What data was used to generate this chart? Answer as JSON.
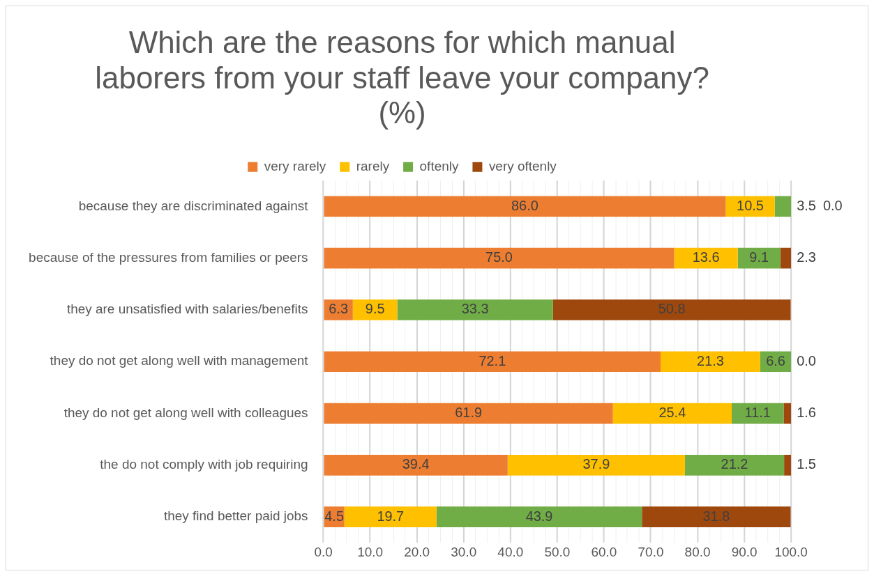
{
  "chart_data": {
    "type": "bar",
    "orientation": "horizontal",
    "stacked": true,
    "title": "Which are the reasons for which manual laborers from your staff leave your company? (%)",
    "categories": [
      "because they are discriminated against",
      "because of the pressures from families or peers",
      "they are unsatisfied with salaries/benefits",
      "they do not get along well with management",
      "they do not get along well with colleagues",
      "the do not comply with job requiring",
      "they find better paid jobs"
    ],
    "series": [
      {
        "name": "very rarely",
        "color": "#ed7d31",
        "values": [
          86.0,
          75.0,
          6.3,
          72.1,
          61.9,
          39.4,
          4.5
        ],
        "value_labels": [
          "86.0",
          "75.0",
          "6.3",
          "72.1",
          "61.9",
          "39.4",
          "4.5"
        ]
      },
      {
        "name": "rarely",
        "color": "#ffc000",
        "values": [
          10.5,
          13.6,
          9.5,
          21.3,
          25.4,
          37.9,
          19.7
        ],
        "value_labels": [
          "10.5",
          "13.6",
          "9.5",
          "21.3",
          "25.4",
          "37.9",
          "19.7"
        ]
      },
      {
        "name": "oftenly",
        "color": "#70ad47",
        "values": [
          3.5,
          9.1,
          33.3,
          6.6,
          11.1,
          21.2,
          43.9
        ],
        "value_labels": [
          "3.5",
          "9.1",
          "33.3",
          "6.6",
          "11.1",
          "21.2",
          "43.9"
        ]
      },
      {
        "name": "very oftenly",
        "color": "#9e480e",
        "values": [
          0.0,
          2.3,
          50.8,
          0.0,
          1.6,
          1.5,
          31.8
        ],
        "value_labels": [
          "0.0",
          "2.3",
          "50.8",
          "0.0",
          "1.6",
          "1.5",
          "31.8"
        ]
      }
    ],
    "xlim": [
      0,
      100
    ],
    "xticks": [
      {
        "value": 0,
        "label": "0.0"
      },
      {
        "value": 2.5,
        "label": null
      },
      {
        "value": 5,
        "label": null
      },
      {
        "value": 7.5,
        "label": null
      },
      {
        "value": 10,
        "label": "10.0"
      },
      {
        "value": 12.5,
        "label": null
      },
      {
        "value": 15,
        "label": null
      },
      {
        "value": 17.5,
        "label": null
      },
      {
        "value": 20,
        "label": "20.0"
      },
      {
        "value": 22.5,
        "label": null
      },
      {
        "value": 25,
        "label": null
      },
      {
        "value": 27.5,
        "label": null
      },
      {
        "value": 30,
        "label": "30.0"
      },
      {
        "value": 32.5,
        "label": null
      },
      {
        "value": 35,
        "label": null
      },
      {
        "value": 37.5,
        "label": null
      },
      {
        "value": 40,
        "label": "40.0"
      },
      {
        "value": 42.5,
        "label": null
      },
      {
        "value": 45,
        "label": null
      },
      {
        "value": 47.5,
        "label": null
      },
      {
        "value": 50,
        "label": "50.0"
      },
      {
        "value": 52.5,
        "label": null
      },
      {
        "value": 55,
        "label": null
      },
      {
        "value": 57.5,
        "label": null
      },
      {
        "value": 60,
        "label": "60.0"
      },
      {
        "value": 62.5,
        "label": null
      },
      {
        "value": 65,
        "label": null
      },
      {
        "value": 67.5,
        "label": null
      },
      {
        "value": 70,
        "label": "70.0"
      },
      {
        "value": 72.5,
        "label": null
      },
      {
        "value": 75,
        "label": null
      },
      {
        "value": 77.5,
        "label": null
      },
      {
        "value": 80,
        "label": "80.0"
      },
      {
        "value": 82.5,
        "label": null
      },
      {
        "value": 85,
        "label": null
      },
      {
        "value": 87.5,
        "label": null
      },
      {
        "value": 90,
        "label": "90.0"
      },
      {
        "value": 92.5,
        "label": null
      },
      {
        "value": 95,
        "label": null
      },
      {
        "value": 97.5,
        "label": null
      },
      {
        "value": 100,
        "label": "100.0"
      }
    ],
    "grid": "x",
    "legend": "top"
  }
}
